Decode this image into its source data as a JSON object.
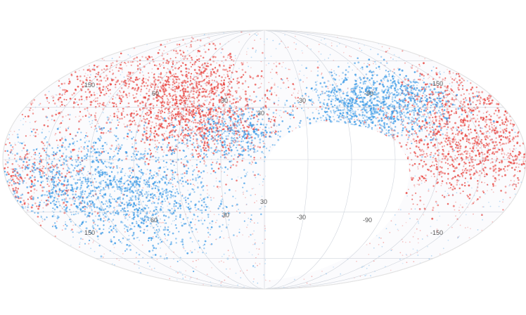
{
  "map": {
    "projection": "mollweide",
    "colors": {
      "positive": "#e8413c",
      "negative": "#3a9ae6",
      "grid": "#cfd4dc",
      "masked_region": "#ffffff",
      "outline": "#e6e6e6"
    },
    "tick_labels": {
      "upper_left_150": "150",
      "upper_60": "60",
      "upper_30": "30",
      "upper_neg30": "-30",
      "upper_neg90": "-90",
      "upper_right_neg150": "-150",
      "center_30": "30",
      "mid_30": "30",
      "lower_left_150": "150",
      "lower_60": "60",
      "lower_30": "30",
      "lower_neg30": "-30",
      "lower_neg90": "-90",
      "lower_right_neg150": "-150"
    },
    "blobs": [
      {
        "sign": "positive",
        "lon": 45,
        "lat": 25,
        "spread": 0.32,
        "strength": 1.0
      },
      {
        "sign": "positive",
        "lon": 70,
        "lat": 40,
        "spread": 0.3,
        "strength": 0.6
      },
      {
        "sign": "positive",
        "lon": -140,
        "lat": 5,
        "spread": 0.32,
        "strength": 1.0
      },
      {
        "sign": "positive",
        "lon": -160,
        "lat": 30,
        "spread": 0.3,
        "strength": 0.5
      },
      {
        "sign": "positive",
        "lon": 140,
        "lat": 45,
        "spread": 0.3,
        "strength": 0.4
      },
      {
        "sign": "positive",
        "lon": 165,
        "lat": -10,
        "spread": 0.25,
        "strength": 0.35
      },
      {
        "sign": "negative",
        "lon": 90,
        "lat": -20,
        "spread": 0.38,
        "strength": 1.0
      },
      {
        "sign": "negative",
        "lon": 130,
        "lat": -15,
        "spread": 0.35,
        "strength": 0.8
      },
      {
        "sign": "negative",
        "lon": -70,
        "lat": 28,
        "spread": 0.22,
        "strength": 0.75
      },
      {
        "sign": "negative",
        "lon": -110,
        "lat": 35,
        "spread": 0.22,
        "strength": 0.6
      },
      {
        "sign": "negative",
        "lon": 20,
        "lat": 15,
        "spread": 0.2,
        "strength": 0.45
      }
    ]
  }
}
